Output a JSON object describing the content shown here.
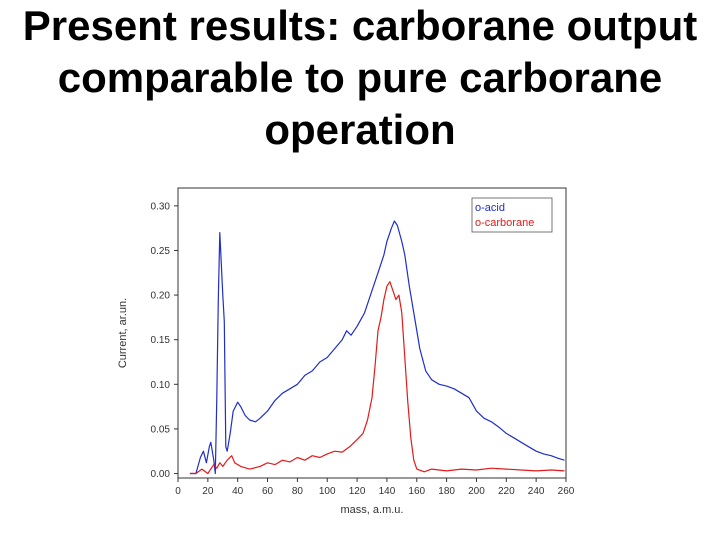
{
  "slide": {
    "title_lines": [
      "Present results: carborane output",
      "comparable to pure carborane",
      "operation"
    ]
  },
  "chart_data": {
    "type": "line",
    "xlabel": "mass, a.m.u.",
    "ylabel": "Current, ar.un.",
    "xlim": [
      0,
      260
    ],
    "ylim": [
      -0.005,
      0.32
    ],
    "x_ticks": [
      0,
      20,
      40,
      60,
      80,
      100,
      120,
      140,
      160,
      180,
      200,
      220,
      240,
      260
    ],
    "y_ticks": [
      0.0,
      0.05,
      0.1,
      0.15,
      0.2,
      0.25,
      0.3
    ],
    "y_tick_labels": [
      "0.00",
      "0.05",
      "0.10",
      "0.15",
      "0.20",
      "0.25",
      "0.30"
    ],
    "legend_position": "top-right",
    "series": [
      {
        "name": "o-acid",
        "color": "#1f2fc8",
        "points": [
          [
            8,
            0.0
          ],
          [
            12,
            0.0
          ],
          [
            15,
            0.018
          ],
          [
            17,
            0.025
          ],
          [
            19,
            0.012
          ],
          [
            21,
            0.03
          ],
          [
            22,
            0.035
          ],
          [
            24,
            0.015
          ],
          [
            25,
            0.0
          ],
          [
            26,
            0.085
          ],
          [
            27,
            0.195
          ],
          [
            28,
            0.27
          ],
          [
            29,
            0.235
          ],
          [
            30,
            0.2
          ],
          [
            31,
            0.17
          ],
          [
            32,
            0.03
          ],
          [
            33,
            0.025
          ],
          [
            35,
            0.045
          ],
          [
            37,
            0.07
          ],
          [
            40,
            0.08
          ],
          [
            42,
            0.075
          ],
          [
            45,
            0.065
          ],
          [
            48,
            0.06
          ],
          [
            52,
            0.058
          ],
          [
            55,
            0.062
          ],
          [
            60,
            0.07
          ],
          [
            65,
            0.082
          ],
          [
            70,
            0.09
          ],
          [
            75,
            0.095
          ],
          [
            80,
            0.1
          ],
          [
            85,
            0.11
          ],
          [
            90,
            0.115
          ],
          [
            95,
            0.125
          ],
          [
            100,
            0.13
          ],
          [
            105,
            0.14
          ],
          [
            110,
            0.15
          ],
          [
            113,
            0.16
          ],
          [
            116,
            0.155
          ],
          [
            120,
            0.165
          ],
          [
            125,
            0.18
          ],
          [
            130,
            0.205
          ],
          [
            135,
            0.23
          ],
          [
            138,
            0.245
          ],
          [
            140,
            0.26
          ],
          [
            143,
            0.275
          ],
          [
            145,
            0.283
          ],
          [
            147,
            0.278
          ],
          [
            150,
            0.26
          ],
          [
            152,
            0.245
          ],
          [
            155,
            0.21
          ],
          [
            158,
            0.18
          ],
          [
            162,
            0.14
          ],
          [
            166,
            0.115
          ],
          [
            170,
            0.105
          ],
          [
            175,
            0.1
          ],
          [
            180,
            0.098
          ],
          [
            185,
            0.095
          ],
          [
            190,
            0.09
          ],
          [
            195,
            0.085
          ],
          [
            200,
            0.07
          ],
          [
            205,
            0.062
          ],
          [
            210,
            0.058
          ],
          [
            215,
            0.052
          ],
          [
            220,
            0.045
          ],
          [
            225,
            0.04
          ],
          [
            230,
            0.035
          ],
          [
            235,
            0.03
          ],
          [
            240,
            0.025
          ],
          [
            245,
            0.022
          ],
          [
            250,
            0.02
          ],
          [
            255,
            0.017
          ],
          [
            259,
            0.015
          ]
        ]
      },
      {
        "name": "o-carborane",
        "color": "#e41a1a",
        "points": [
          [
            8,
            0.0
          ],
          [
            12,
            0.0
          ],
          [
            16,
            0.005
          ],
          [
            20,
            0.0
          ],
          [
            24,
            0.01
          ],
          [
            26,
            0.006
          ],
          [
            28,
            0.012
          ],
          [
            30,
            0.008
          ],
          [
            33,
            0.015
          ],
          [
            36,
            0.02
          ],
          [
            38,
            0.012
          ],
          [
            42,
            0.008
          ],
          [
            48,
            0.005
          ],
          [
            55,
            0.008
          ],
          [
            60,
            0.012
          ],
          [
            65,
            0.01
          ],
          [
            70,
            0.015
          ],
          [
            75,
            0.013
          ],
          [
            80,
            0.018
          ],
          [
            85,
            0.015
          ],
          [
            90,
            0.02
          ],
          [
            95,
            0.018
          ],
          [
            100,
            0.022
          ],
          [
            105,
            0.025
          ],
          [
            110,
            0.024
          ],
          [
            115,
            0.03
          ],
          [
            120,
            0.038
          ],
          [
            124,
            0.045
          ],
          [
            127,
            0.06
          ],
          [
            130,
            0.085
          ],
          [
            132,
            0.12
          ],
          [
            134,
            0.16
          ],
          [
            136,
            0.175
          ],
          [
            138,
            0.195
          ],
          [
            140,
            0.21
          ],
          [
            142,
            0.215
          ],
          [
            144,
            0.205
          ],
          [
            146,
            0.195
          ],
          [
            148,
            0.2
          ],
          [
            150,
            0.18
          ],
          [
            152,
            0.13
          ],
          [
            154,
            0.08
          ],
          [
            156,
            0.04
          ],
          [
            158,
            0.015
          ],
          [
            160,
            0.005
          ],
          [
            165,
            0.002
          ],
          [
            170,
            0.005
          ],
          [
            180,
            0.003
          ],
          [
            190,
            0.005
          ],
          [
            200,
            0.004
          ],
          [
            210,
            0.006
          ],
          [
            220,
            0.005
          ],
          [
            230,
            0.004
          ],
          [
            240,
            0.003
          ],
          [
            250,
            0.004
          ],
          [
            259,
            0.003
          ]
        ]
      }
    ]
  }
}
